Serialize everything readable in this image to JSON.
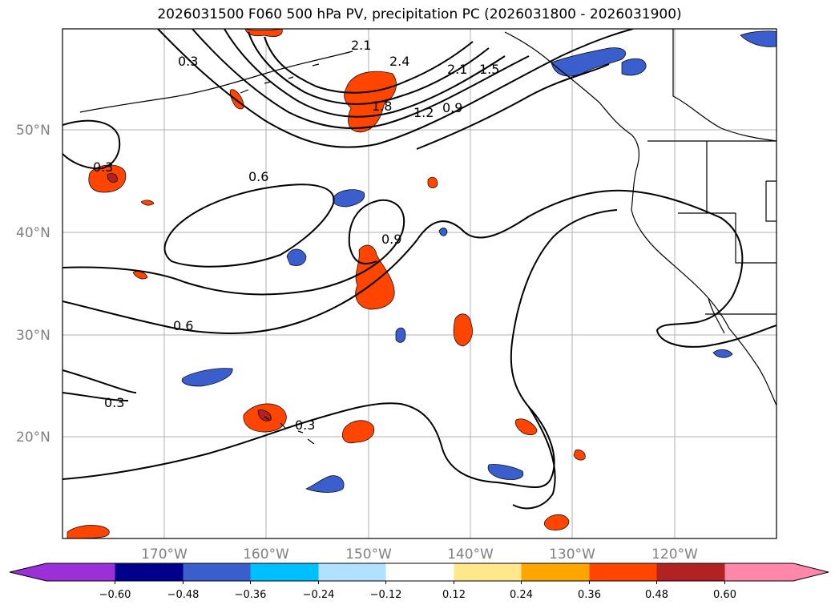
{
  "title": "2026031500 F060 500 hPa PV, precipitation PC (2026031800 - 2026031900)",
  "lat_labels": [
    "50°N",
    "40°N",
    "30°N",
    "20°N"
  ],
  "lon_labels": [
    "170°W",
    "160°W",
    "150°W",
    "140°W",
    "130°W",
    "120°W"
  ],
  "colorbar": {
    "colors": [
      "#9b30d8",
      "#00008c",
      "#3a5fcd",
      "#00bfff",
      "#b0e2ff",
      "#ffffff",
      "#ffe78c",
      "#ffa500",
      "#ff4500",
      "#b22222",
      "#ff88aa"
    ],
    "ticks": [
      "−0.60",
      "−0.48",
      "−0.36",
      "−0.24",
      "−0.12",
      "0.12",
      "0.24",
      "0.36",
      "0.48",
      "0.60"
    ]
  },
  "contour_labels": [
    "2.1",
    "0.3",
    "2.4",
    "2.1",
    "1.5",
    "1.8",
    "1.2",
    "0.9",
    "0.3",
    "0.6",
    "0.9",
    "0.6",
    "0.3",
    "0.3"
  ]
}
